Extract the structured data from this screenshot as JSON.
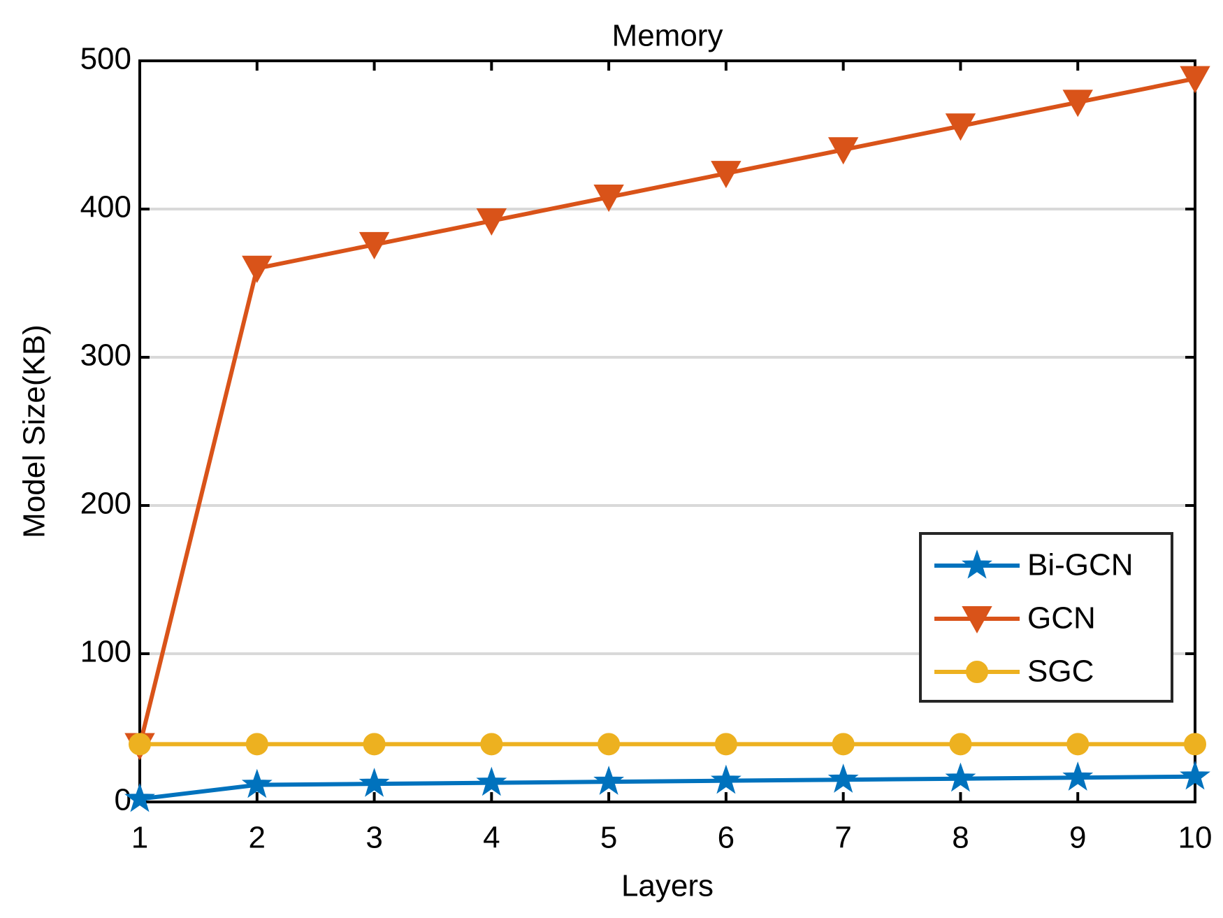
{
  "chart_data": {
    "type": "line",
    "title": "Memory",
    "x_label": "Layers",
    "y_label": "Model Size(KB)",
    "x": [
      1,
      2,
      3,
      4,
      5,
      6,
      7,
      8,
      9,
      10
    ],
    "series": [
      {
        "name": "Bi-GCN",
        "color": "#0072BD",
        "marker": "star",
        "values": [
          2,
          11.5,
          12.2,
          12.9,
          13.6,
          14.3,
          15,
          15.7,
          16.4,
          17.1
        ]
      },
      {
        "name": "GCN",
        "color": "#D95319",
        "marker": "triangle-down",
        "values": [
          38,
          360,
          376,
          392,
          408,
          424,
          440,
          456,
          472,
          488
        ]
      },
      {
        "name": "SGC",
        "color": "#EDB120",
        "marker": "circle",
        "values": [
          39,
          39,
          39,
          39,
          39,
          39,
          39,
          39,
          39,
          39
        ]
      }
    ],
    "xlim": [
      1,
      10
    ],
    "xticks": [
      1,
      2,
      3,
      4,
      5,
      6,
      7,
      8,
      9,
      10
    ],
    "ylim": [
      0,
      500
    ],
    "yticks": [
      0,
      100,
      200,
      300,
      400,
      500
    ],
    "grid": true,
    "legend": "lower right"
  }
}
